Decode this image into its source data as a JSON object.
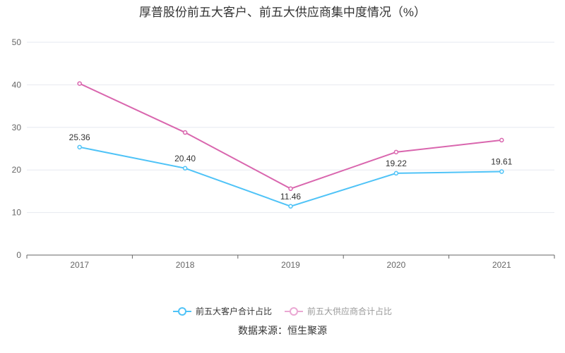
{
  "chart_data": {
    "type": "line",
    "title": "厚普股份前五大客户、前五大供应商集中度情况（%）",
    "categories": [
      "2017",
      "2018",
      "2019",
      "2020",
      "2021"
    ],
    "ylim": [
      0,
      50
    ],
    "yticks": [
      "0",
      "10",
      "20",
      "30",
      "40",
      "50"
    ],
    "grid": true,
    "legend_placement": "bottom",
    "series": [
      {
        "name": "前五大客户合计占比",
        "color": "#4fc3f7",
        "values": [
          25.36,
          20.4,
          11.46,
          19.22,
          19.61
        ],
        "labels": [
          "25.36",
          "20.40",
          "11.46",
          "19.22",
          "19.61"
        ]
      },
      {
        "name": "前五大供应商合计占比",
        "color": "#d966ae",
        "legend_color": "#eaa8d3",
        "values": [
          40.3,
          28.8,
          15.6,
          24.2,
          27.0
        ]
      }
    ]
  },
  "source": "数据来源：恒生聚源"
}
